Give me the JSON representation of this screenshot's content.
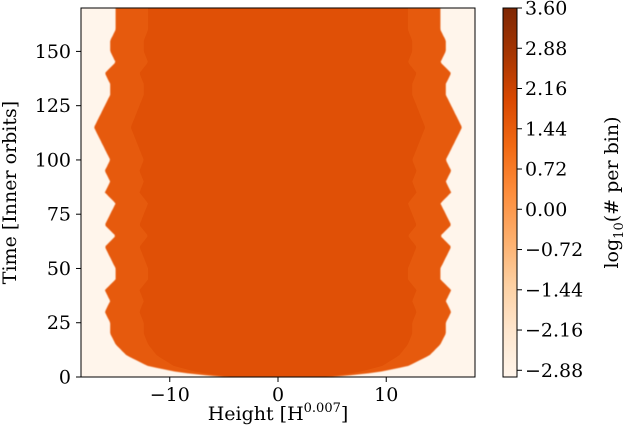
{
  "chart_data": {
    "type": "heatmap",
    "xlabel": {
      "base": "Height [H",
      "sup": "0.007",
      "tail": "]"
    },
    "ylabel": "Time [Inner orbits]",
    "x_ticks": [
      -10,
      0,
      10
    ],
    "x_tick_labels": [
      "−10",
      "0",
      "10"
    ],
    "xlim": [
      -18.2,
      18.2
    ],
    "y_ticks": [
      0,
      25,
      50,
      75,
      100,
      125,
      150
    ],
    "y_tick_labels": [
      "0",
      "25",
      "50",
      "75",
      "100",
      "125",
      "150"
    ],
    "ylim": [
      0,
      170
    ],
    "colorbar": {
      "label": {
        "base": "log",
        "sub": "10",
        "tail": "(# per bin)"
      },
      "ticks": [
        -2.88,
        -2.16,
        -1.44,
        -0.72,
        0.0,
        0.72,
        1.44,
        2.16,
        2.88,
        3.6
      ],
      "tick_labels": [
        "−2.88",
        "−2.16",
        "−1.44",
        "−0.72",
        "0.00",
        "0.72",
        "1.44",
        "2.16",
        "2.88",
        "3.60"
      ],
      "range": [
        -3.0,
        3.6
      ],
      "colormap": "Oranges",
      "colors": [
        "#fff5eb",
        "#fee6ce",
        "#fdd0a2",
        "#fdae6b",
        "#fd8d3c",
        "#f16913",
        "#d94801",
        "#a63603",
        "#7f2704"
      ]
    },
    "background_value": -3.0,
    "core_value": 1.8,
    "edge_value": 1.5,
    "envelope": {
      "time": [
        0,
        2,
        5,
        10,
        15,
        20,
        25,
        30,
        35,
        40,
        45,
        50,
        55,
        60,
        65,
        70,
        75,
        80,
        85,
        90,
        95,
        100,
        105,
        110,
        115,
        120,
        125,
        130,
        135,
        140,
        145,
        150,
        155,
        160,
        165,
        170
      ],
      "half_width": [
        5,
        9,
        12,
        14,
        15,
        15.5,
        15.5,
        16,
        15.5,
        16,
        15,
        15,
        15.5,
        16,
        15,
        16,
        15.5,
        15,
        16,
        15.5,
        16,
        15.5,
        16,
        16.5,
        17,
        16.5,
        16,
        15.5,
        15.5,
        16,
        15,
        15.5,
        15.5,
        15,
        15,
        15
      ]
    }
  }
}
